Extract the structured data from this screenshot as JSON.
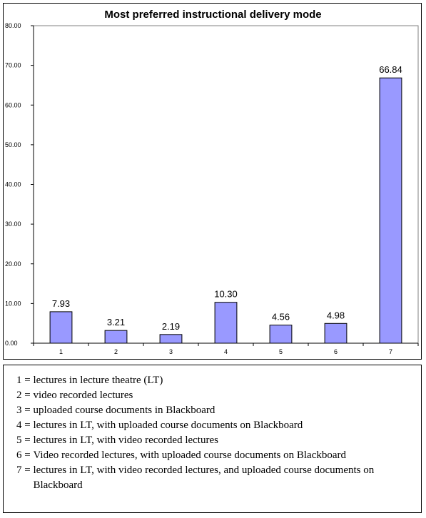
{
  "chart_data": {
    "type": "bar",
    "title": "Most preferred instructional delivery mode",
    "categories": [
      "1",
      "2",
      "3",
      "4",
      "5",
      "6",
      "7"
    ],
    "values": [
      7.93,
      3.21,
      2.19,
      10.3,
      4.56,
      4.98,
      66.84
    ],
    "value_labels": [
      "7.93",
      "3.21",
      "2.19",
      "10.30",
      "4.56",
      "4.98",
      "66.84"
    ],
    "ylim": [
      0,
      80
    ],
    "yticks": [
      "0.00",
      "10.00",
      "20.00",
      "30.00",
      "40.00",
      "50.00",
      "60.00",
      "70.00",
      "80.00"
    ],
    "ytick_values": [
      0,
      10,
      20,
      30,
      40,
      50,
      60,
      70,
      80
    ],
    "grid": false,
    "bar_color": "#9999ff",
    "xlabel": "",
    "ylabel": ""
  },
  "legend": [
    {
      "key": "1 = ",
      "text": "lectures in lecture theatre (LT)"
    },
    {
      "key": "2 = ",
      "text": "video recorded lectures"
    },
    {
      "key": "3 = ",
      "text": "uploaded course documents in Blackboard"
    },
    {
      "key": "4 = ",
      "text": "lectures in LT, with uploaded course documents on Blackboard"
    },
    {
      "key": "5 = ",
      "text": "lectures in LT, with video recorded lectures"
    },
    {
      "key": "6 = ",
      "text": "Video recorded lectures, with uploaded course documents on Blackboard"
    },
    {
      "key": "7 = ",
      "text": "lectures in LT, with video recorded lectures, and uploaded course documents on Blackboard"
    }
  ]
}
